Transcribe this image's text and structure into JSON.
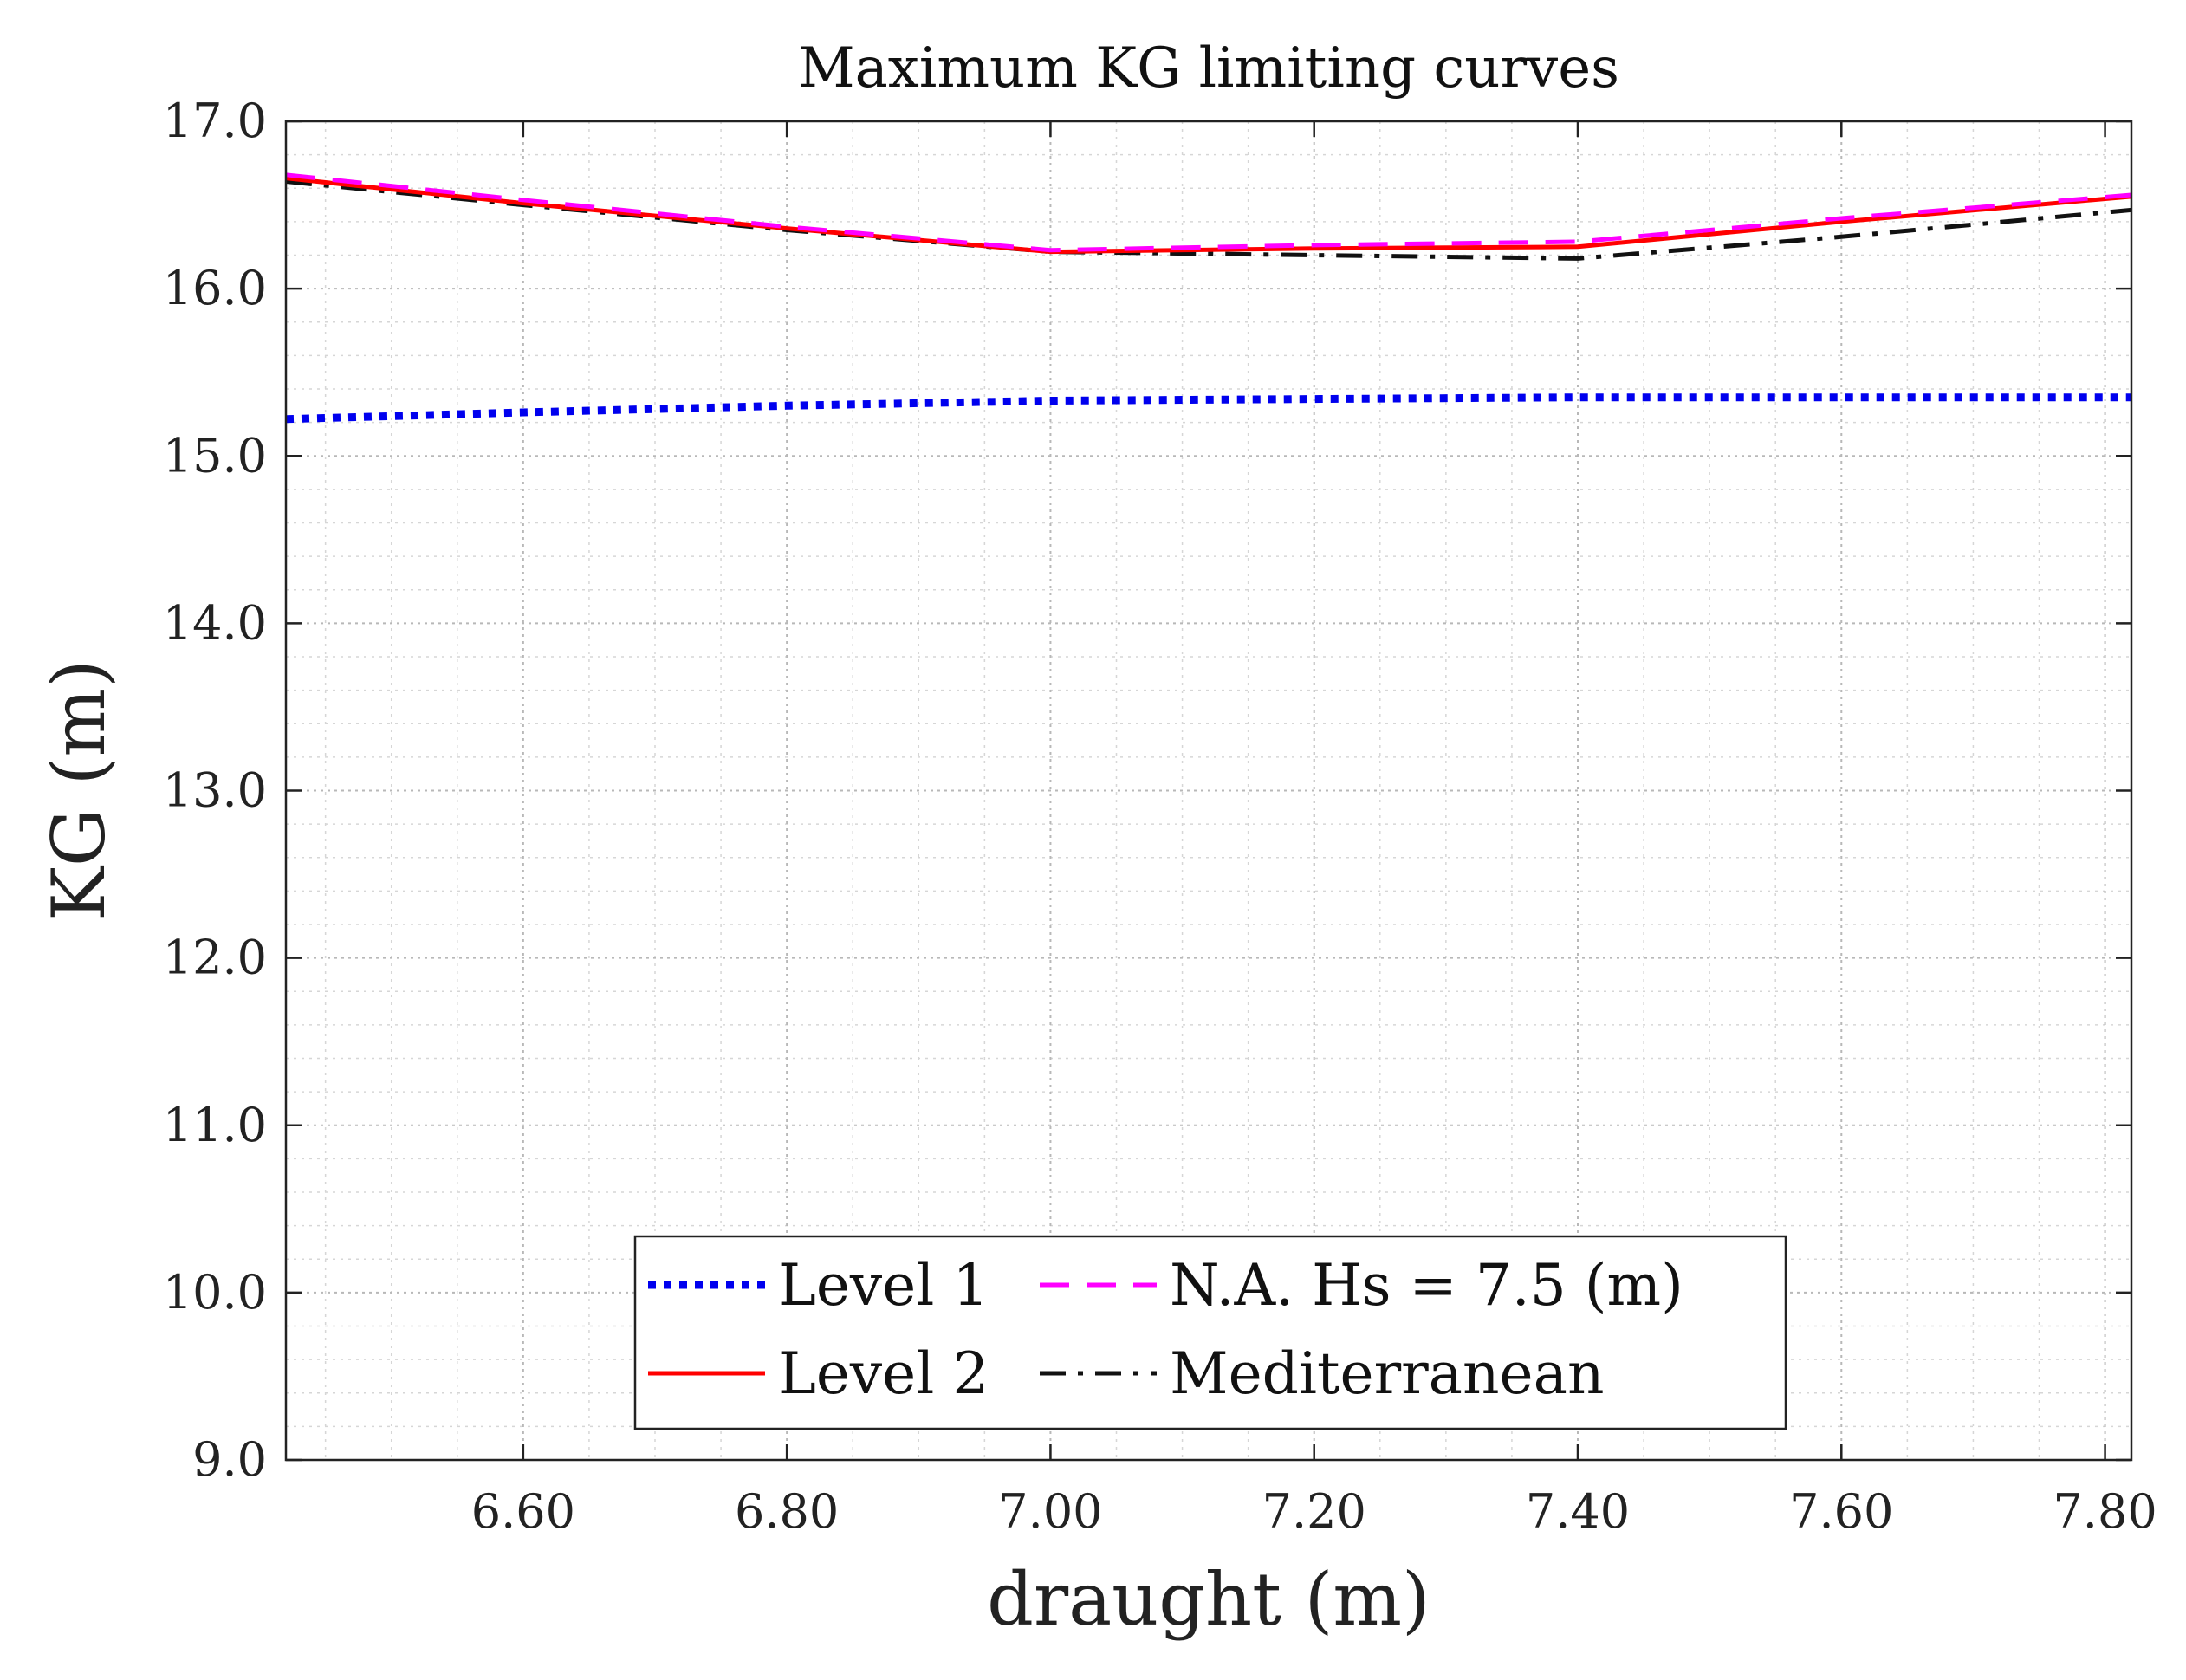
{
  "chart_data": {
    "type": "line",
    "title": "Maximum KG limiting curves",
    "xlabel": "draught (m)",
    "ylabel": "KG (m)",
    "xlim": [
      6.42,
      7.82
    ],
    "ylim": [
      9.0,
      17.0
    ],
    "xticks": [
      6.6,
      6.8,
      7.0,
      7.2,
      7.4,
      7.6,
      7.8
    ],
    "xtick_labels": [
      "6.60",
      "6.80",
      "7.00",
      "7.20",
      "7.40",
      "7.60",
      "7.80"
    ],
    "yticks": [
      9,
      10,
      11,
      12,
      13,
      14,
      15,
      16,
      17
    ],
    "ytick_labels": [
      "9.0",
      "10.0",
      "11.0",
      "12.0",
      "13.0",
      "14.0",
      "15.0",
      "16.0",
      "17.0"
    ],
    "grid": true,
    "minor_grid": true,
    "legend_position": "bottom-center",
    "legend_columns": 2,
    "series": [
      {
        "name": "Level 1",
        "color": "#0000ee",
        "style": "dotted",
        "x": [
          6.42,
          6.6,
          6.8,
          7.0,
          7.2,
          7.4,
          7.6,
          7.82
        ],
        "y": [
          15.22,
          15.26,
          15.3,
          15.33,
          15.34,
          15.35,
          15.35,
          15.35
        ]
      },
      {
        "name": "Level 2",
        "color": "#ff0000",
        "style": "solid",
        "x": [
          6.42,
          6.6,
          6.8,
          7.0,
          7.2,
          7.4,
          7.6,
          7.82
        ],
        "y": [
          16.66,
          16.51,
          16.36,
          16.22,
          16.24,
          16.25,
          16.4,
          16.55
        ]
      },
      {
        "name": "N.A. Hs = 7.5 (m)",
        "color": "#ff00ff",
        "style": "dashed",
        "x": [
          6.42,
          6.6,
          6.8,
          7.0,
          7.2,
          7.4,
          7.6,
          7.82
        ],
        "y": [
          16.68,
          16.53,
          16.37,
          16.23,
          16.26,
          16.28,
          16.42,
          16.56
        ]
      },
      {
        "name": "Mediterranean",
        "color": "#111111",
        "style": "dashdot",
        "x": [
          6.42,
          6.6,
          6.8,
          7.0,
          7.2,
          7.4,
          7.6,
          7.82
        ],
        "y": [
          16.64,
          16.5,
          16.35,
          16.22,
          16.2,
          16.18,
          16.31,
          16.47
        ]
      }
    ]
  }
}
